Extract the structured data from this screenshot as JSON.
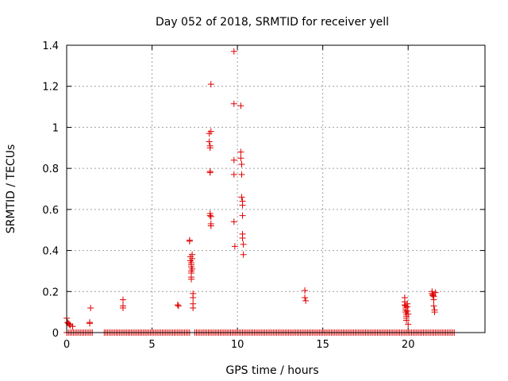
{
  "chart_data": {
    "type": "scatter",
    "title": "Day 052 of 2018, SRMTID for receiver yell",
    "xlabel": "GPS time / hours",
    "ylabel": "SRMTID / TECUs",
    "xlim": [
      0,
      24.5
    ],
    "ylim": [
      0,
      1.4
    ],
    "xticks": [
      0,
      5,
      10,
      15,
      20
    ],
    "yticks": [
      0,
      0.2,
      0.4,
      0.6,
      0.8,
      1,
      1.2,
      1.4
    ],
    "xtick_labels": [
      "0",
      "5",
      "10",
      "15",
      "20"
    ],
    "ytick_labels": [
      "0",
      "0.2",
      "0.4",
      "0.6",
      "0.8",
      "1",
      "1.2",
      "1.4"
    ],
    "grid": true,
    "marker": "+",
    "color": "#e00000",
    "zero_baseline": {
      "from": 0,
      "to": 22.7,
      "step": 0.1,
      "gaps": [
        [
          1.6,
          2.2
        ],
        [
          7.2,
          7.4
        ]
      ]
    },
    "series": [
      {
        "name": "SRMTID",
        "x": [
          0.0,
          0.05,
          0.1,
          0.15,
          0.2,
          0.35,
          1.35,
          1.35,
          1.4,
          3.3,
          3.3,
          3.3,
          6.5,
          6.55,
          7.2,
          7.2,
          7.25,
          7.25,
          7.3,
          7.3,
          7.3,
          7.3,
          7.3,
          7.3,
          7.3,
          7.35,
          7.35,
          7.35,
          7.4,
          7.4,
          7.4,
          7.4,
          8.35,
          8.35,
          8.4,
          8.4,
          8.4,
          8.4,
          8.4,
          8.4,
          8.45,
          8.45,
          8.45,
          8.45,
          8.45,
          9.8,
          9.8,
          9.8,
          9.8,
          9.8,
          9.85,
          10.2,
          10.2,
          10.2,
          10.25,
          10.25,
          10.25,
          10.3,
          10.3,
          10.3,
          10.3,
          10.3,
          10.35,
          10.35,
          13.95,
          13.95,
          14.0,
          19.8,
          19.8,
          19.8,
          19.85,
          19.85,
          19.85,
          19.85,
          19.9,
          19.9,
          19.9,
          19.9,
          19.95,
          19.95,
          19.95,
          20.0,
          20.0,
          21.4,
          21.4,
          21.45,
          21.45,
          21.5,
          21.5,
          21.5,
          21.55,
          21.55,
          21.6
        ],
        "y": [
          0.07,
          0.05,
          0.045,
          0.04,
          0.035,
          0.03,
          0.05,
          0.045,
          0.12,
          0.16,
          0.13,
          0.12,
          0.135,
          0.13,
          0.45,
          0.445,
          0.37,
          0.35,
          0.34,
          0.33,
          0.3,
          0.29,
          0.27,
          0.26,
          0.32,
          0.38,
          0.36,
          0.31,
          0.19,
          0.17,
          0.14,
          0.12,
          0.97,
          0.93,
          0.91,
          0.9,
          0.785,
          0.78,
          0.58,
          0.57,
          0.565,
          0.53,
          0.52,
          0.98,
          1.21,
          1.37,
          1.115,
          0.84,
          0.77,
          0.54,
          0.42,
          1.105,
          0.88,
          0.85,
          0.82,
          0.77,
          0.66,
          0.64,
          0.62,
          0.57,
          0.48,
          0.46,
          0.43,
          0.38,
          0.205,
          0.17,
          0.155,
          0.17,
          0.15,
          0.135,
          0.13,
          0.12,
          0.11,
          0.1,
          0.09,
          0.08,
          0.07,
          0.06,
          0.14,
          0.125,
          0.105,
          0.09,
          0.04,
          0.2,
          0.19,
          0.185,
          0.18,
          0.175,
          0.16,
          0.13,
          0.11,
          0.1,
          0.195
        ]
      }
    ]
  }
}
